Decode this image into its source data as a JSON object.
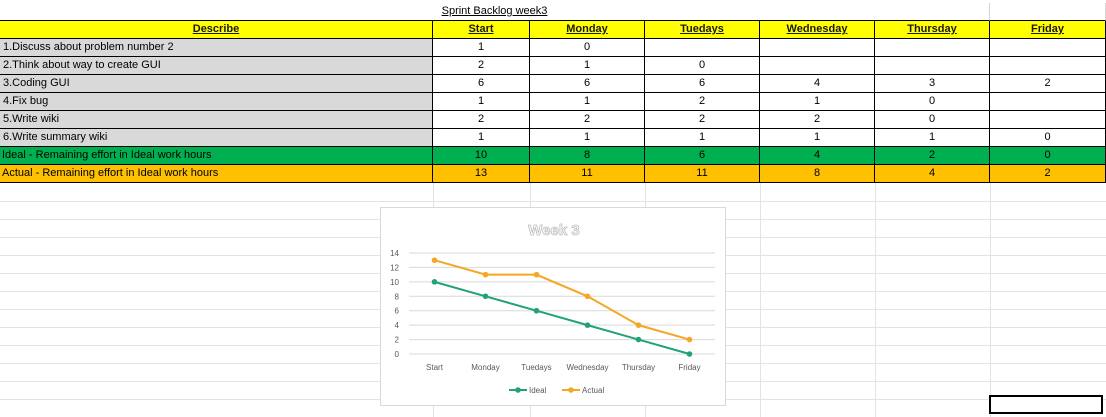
{
  "sheet": {
    "title": "Sprint Backlog week3",
    "headers": [
      "Describe",
      "Start",
      "Monday",
      "Tuedays",
      "Wednesday",
      "Thursday",
      "Friday"
    ],
    "tasks": [
      {
        "label": "1.Discuss about problem number 2",
        "values": [
          "1",
          "0",
          "",
          "",
          "",
          ""
        ]
      },
      {
        "label": "2.Think about way to create GUI",
        "values": [
          "2",
          "1",
          "0",
          "",
          "",
          ""
        ]
      },
      {
        "label": "3.Coding GUI",
        "values": [
          "6",
          "6",
          "6",
          "4",
          "3",
          "2"
        ]
      },
      {
        "label": "4.Fix bug",
        "values": [
          "1",
          "1",
          "2",
          "1",
          "0",
          ""
        ]
      },
      {
        "label": "5.Write wiki",
        "values": [
          "2",
          "2",
          "2",
          "2",
          "0",
          ""
        ]
      },
      {
        "label": "6.Write summary wiki",
        "values": [
          "1",
          "1",
          "1",
          "1",
          "1",
          "0"
        ]
      }
    ],
    "ideal_row": {
      "label": "Ideal - Remaining effort in Ideal work hours",
      "values": [
        "10",
        "8",
        "6",
        "4",
        "2",
        "0"
      ],
      "color": "#00b050"
    },
    "actual_row": {
      "label": "Actual - Remaining effort in Ideal work hours",
      "values": [
        "13",
        "11",
        "11",
        "8",
        "4",
        "2"
      ],
      "color": "#ffc000"
    },
    "header_color": "#ffff00",
    "task_label_color": "#d9d9d9"
  },
  "chart_data": {
    "type": "line",
    "title": "Week 3",
    "categories": [
      "Start",
      "Monday",
      "Tuedays",
      "Wednesday",
      "Thursday",
      "Friday"
    ],
    "series": [
      {
        "name": "Ideal",
        "values": [
          10,
          8,
          6,
          4,
          2,
          0
        ],
        "color": "#21a37a"
      },
      {
        "name": "Actual",
        "values": [
          13,
          11,
          11,
          8,
          4,
          2
        ],
        "color": "#f5a623"
      }
    ],
    "yticks": [
      "0",
      "2",
      "4",
      "6",
      "8",
      "10",
      "12",
      "14"
    ],
    "ylim": [
      0,
      14
    ],
    "grid": true,
    "legend": "bottom"
  }
}
